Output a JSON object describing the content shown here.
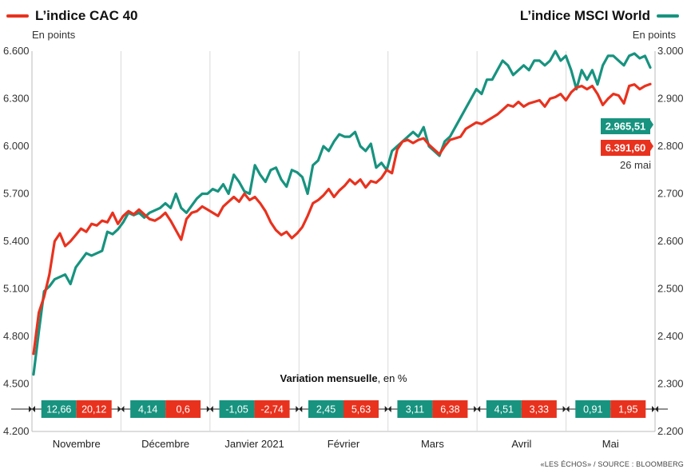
{
  "header": {
    "left_title": "L’indice CAC 40",
    "left_unit": "En points",
    "right_title": "L’indice MSCI World",
    "right_unit": "En points"
  },
  "colors": {
    "cac": "#e8321e",
    "msci": "#17937f"
  },
  "variation": {
    "title": "Variation mensuelle",
    "unit": ", en %",
    "months": [
      {
        "label": "Novembre",
        "msci": "12,66",
        "cac": "20,12"
      },
      {
        "label": "Décembre",
        "msci": "4,14",
        "cac": "0,6"
      },
      {
        "label": "Janvier 2021",
        "msci": "-1,05",
        "cac": "-2,74"
      },
      {
        "label": "Février",
        "msci": "2,45",
        "cac": "5,63"
      },
      {
        "label": "Mars",
        "msci": "3,11",
        "cac": "6,38"
      },
      {
        "label": "Avril",
        "msci": "4,51",
        "cac": "3,33"
      },
      {
        "label": "Mai",
        "msci": "0,91",
        "cac": "1,95"
      }
    ]
  },
  "last_values": {
    "msci": "2.965,51",
    "cac": "6.391,60",
    "date": "26 mai"
  },
  "credit": "«LES ÉCHOS» / SOURCE : BLOOMBERG",
  "chart_data": {
    "type": "line",
    "x_labels": [
      "Novembre",
      "Décembre",
      "Janvier 2021",
      "Février",
      "Mars",
      "Avril",
      "Mai"
    ],
    "left_axis": {
      "ticks": [
        "4.200",
        "4.500",
        "4.800",
        "5.100",
        "5.400",
        "5.700",
        "6.000",
        "6.300",
        "6.600"
      ],
      "range": [
        4200,
        6600
      ]
    },
    "right_axis": {
      "ticks": [
        "2.200",
        "2.300",
        "2.400",
        "2.500",
        "2.600",
        "2.700",
        "2.800",
        "2.900",
        "3.000"
      ],
      "range": [
        2200,
        3000
      ]
    },
    "grid": "vertical",
    "series": [
      {
        "name": "L’indice CAC 40",
        "axis": "left",
        "values": [
          4690,
          4950,
          5050,
          5190,
          5400,
          5450,
          5370,
          5400,
          5440,
          5480,
          5460,
          5510,
          5500,
          5530,
          5520,
          5580,
          5510,
          5560,
          5590,
          5570,
          5600,
          5570,
          5540,
          5530,
          5550,
          5580,
          5530,
          5470,
          5410,
          5540,
          5580,
          5590,
          5620,
          5600,
          5580,
          5560,
          5620,
          5650,
          5680,
          5650,
          5700,
          5660,
          5680,
          5640,
          5590,
          5520,
          5470,
          5440,
          5460,
          5420,
          5450,
          5490,
          5560,
          5640,
          5660,
          5690,
          5730,
          5680,
          5720,
          5750,
          5790,
          5760,
          5790,
          5740,
          5780,
          5770,
          5800,
          5850,
          5830,
          5980,
          6030,
          6040,
          6020,
          6040,
          6050,
          6010,
          5980,
          5950,
          6000,
          6040,
          6050,
          6060,
          6110,
          6130,
          6150,
          6140,
          6160,
          6180,
          6200,
          6230,
          6260,
          6250,
          6280,
          6250,
          6270,
          6280,
          6290,
          6250,
          6300,
          6310,
          6330,
          6290,
          6340,
          6370,
          6380,
          6360,
          6380,
          6330,
          6260,
          6300,
          6330,
          6320,
          6270,
          6380,
          6390,
          6360,
          6380,
          6391.6
        ]
      },
      {
        "name": "L’indice MSCI World",
        "axis": "right",
        "values": [
          2320,
          2410,
          2495,
          2505,
          2520,
          2525,
          2530,
          2510,
          2545,
          2560,
          2575,
          2570,
          2575,
          2580,
          2620,
          2615,
          2625,
          2640,
          2660,
          2655,
          2660,
          2650,
          2660,
          2665,
          2670,
          2680,
          2670,
          2700,
          2670,
          2660,
          2675,
          2690,
          2700,
          2700,
          2710,
          2705,
          2720,
          2700,
          2740,
          2725,
          2705,
          2700,
          2760,
          2740,
          2725,
          2750,
          2755,
          2730,
          2715,
          2750,
          2745,
          2735,
          2700,
          2760,
          2770,
          2800,
          2790,
          2810,
          2825,
          2820,
          2820,
          2830,
          2800,
          2790,
          2805,
          2755,
          2765,
          2750,
          2790,
          2800,
          2810,
          2820,
          2830,
          2820,
          2840,
          2800,
          2790,
          2780,
          2810,
          2820,
          2840,
          2860,
          2880,
          2900,
          2920,
          2910,
          2940,
          2940,
          2960,
          2980,
          2970,
          2950,
          2960,
          2970,
          2960,
          2980,
          2980,
          2970,
          2980,
          3000,
          2980,
          2990,
          2960,
          2920,
          2960,
          2940,
          2960,
          2930,
          2970,
          2990,
          2990,
          2980,
          2970,
          2990,
          2995,
          2985,
          2990,
          2965.51
        ]
      }
    ]
  }
}
